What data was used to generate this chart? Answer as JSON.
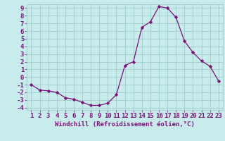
{
  "hours": [
    1,
    2,
    3,
    4,
    5,
    6,
    7,
    8,
    9,
    10,
    11,
    12,
    13,
    14,
    15,
    16,
    17,
    18,
    19,
    20,
    21,
    22,
    23
  ],
  "values": [
    -1.0,
    -1.7,
    -1.8,
    -2.0,
    -2.7,
    -2.9,
    -3.3,
    -3.7,
    -3.7,
    -3.4,
    -2.3,
    1.5,
    2.0,
    6.5,
    7.2,
    9.2,
    9.0,
    7.8,
    4.7,
    3.2,
    2.1,
    1.4,
    -0.5
  ],
  "line_color": "#7b0f7b",
  "marker": "D",
  "marker_size": 2.2,
  "bg_color": "#c8ecec",
  "grid_color": "#a0cccc",
  "xlabel": "Windchill (Refroidissement éolien,°C)",
  "xlim_min": 0.5,
  "xlim_max": 23.5,
  "ylim_min": -4.3,
  "ylim_max": 9.5,
  "yticks": [
    -4,
    -3,
    -2,
    -1,
    0,
    1,
    2,
    3,
    4,
    5,
    6,
    7,
    8,
    9
  ],
  "xticks": [
    1,
    2,
    3,
    4,
    5,
    6,
    7,
    8,
    9,
    10,
    11,
    12,
    13,
    14,
    15,
    16,
    17,
    18,
    19,
    20,
    21,
    22,
    23
  ],
  "axis_label_color": "#7b0f7b",
  "tick_color": "#7b0f7b",
  "tick_fontsize": 6.5,
  "xlabel_fontsize": 6.5
}
